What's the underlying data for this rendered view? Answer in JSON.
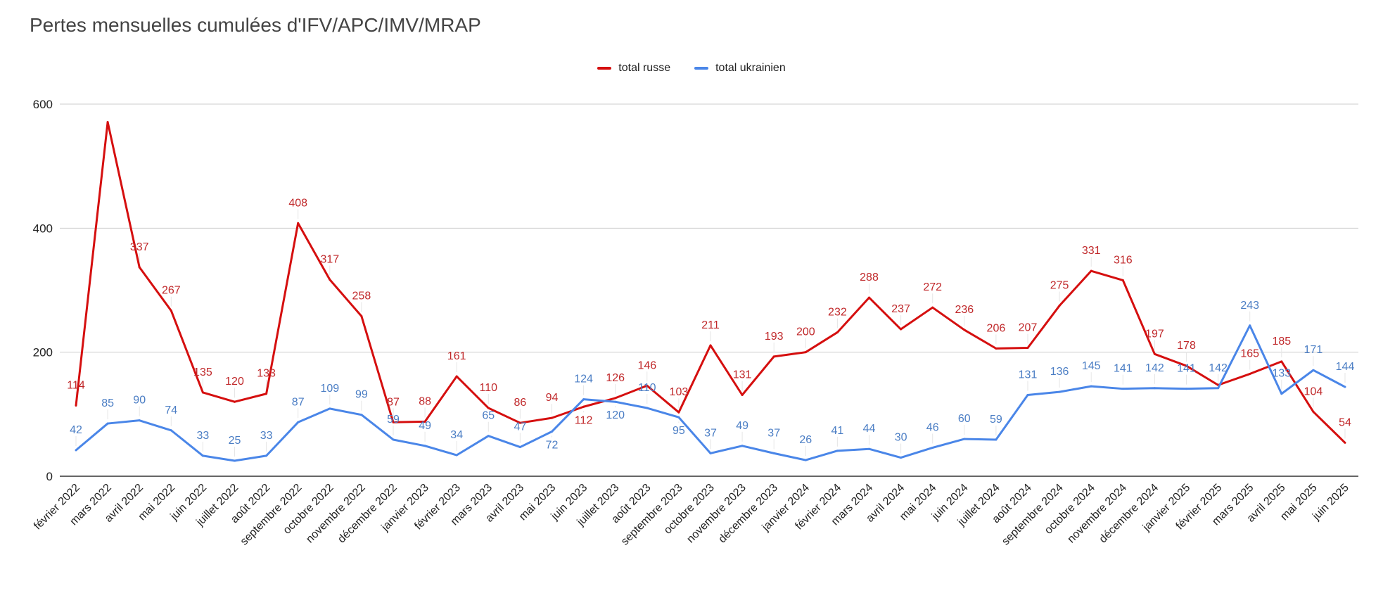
{
  "chart_data": {
    "type": "line",
    "title": "Pertes mensuelles cumulées d'IFV/APC/IMV/MRAP",
    "xlabel": "",
    "ylabel": "",
    "ylim": [
      0,
      600
    ],
    "yticks": [
      "0",
      "200",
      "400",
      "600"
    ],
    "grid": true,
    "legend_position": "top",
    "categories": [
      "février 2022",
      "mars 2022",
      "avril 2022",
      "mai 2022",
      "juin 2022",
      "juillet 2022",
      "août 2022",
      "septembre 2022",
      "octobre 2022",
      "novembre 2022",
      "décembre 2022",
      "janvier 2023",
      "février 2023",
      "mars 2023",
      "avril 2023",
      "mai 2023",
      "juin 2023",
      "juillet 2023",
      "août 2023",
      "septembre 2023",
      "octobre 2023",
      "novembre 2023",
      "décembre 2023",
      "janvier 2024",
      "février 2024",
      "mars 2024",
      "avril 2024",
      "mai 2024",
      "juin 2024",
      "juillet 2024",
      "août 2024",
      "septembre 2024",
      "octobre 2024",
      "novembre 2024",
      "décembre 2024",
      "janvier 2025",
      "février 2025",
      "mars 2025",
      "avril 2025",
      "mai 2025",
      "juin 2025"
    ],
    "series": [
      {
        "name": "total russe",
        "color": "#d50f0f",
        "label_color": "#c0282a",
        "values": [
          114,
          571,
          337,
          267,
          135,
          120,
          133,
          408,
          317,
          258,
          87,
          88,
          161,
          110,
          86,
          94,
          112,
          126,
          146,
          103,
          211,
          131,
          193,
          200,
          232,
          288,
          237,
          272,
          236,
          206,
          207,
          275,
          331,
          316,
          197,
          178,
          147,
          165,
          185,
          104,
          54
        ],
        "hidden_labels": [
          1,
          36
        ]
      },
      {
        "name": "total ukrainien",
        "color": "#4a86e8",
        "label_color": "#4a7dc4",
        "values": [
          42,
          85,
          90,
          74,
          33,
          25,
          33,
          87,
          109,
          99,
          59,
          49,
          34,
          65,
          47,
          72,
          124,
          120,
          110,
          95,
          37,
          49,
          37,
          26,
          41,
          44,
          30,
          46,
          60,
          59,
          131,
          136,
          145,
          141,
          142,
          141,
          142,
          243,
          133,
          171,
          144
        ],
        "hidden_labels": []
      }
    ]
  }
}
